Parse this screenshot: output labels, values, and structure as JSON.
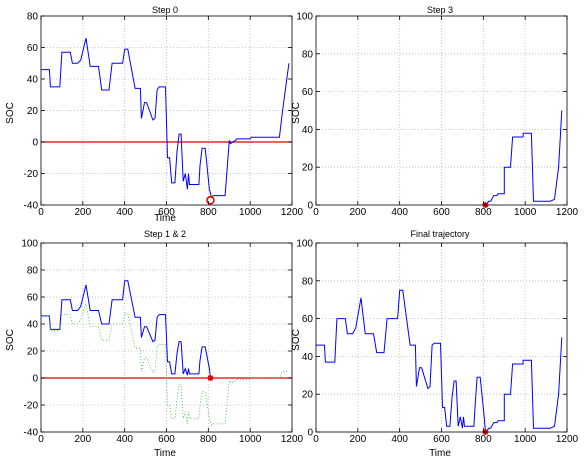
{
  "colors": {
    "trajectory": "#0000ff",
    "reference": "#e00000",
    "marker": "#e00000",
    "prior_trajectory": "#33bb33",
    "grid": "#bbbbbb"
  },
  "chart_data": [
    {
      "type": "line",
      "title": "Step 0",
      "xlabel": "Time",
      "ylabel": "SOC",
      "xlim": [
        0,
        1200
      ],
      "ylim": [
        -40,
        80
      ],
      "xticks": [
        0,
        200,
        400,
        600,
        800,
        1000,
        1200
      ],
      "yticks": [
        -40,
        -20,
        0,
        20,
        40,
        60,
        80
      ],
      "grid": true,
      "ref_line": 0,
      "marker": {
        "x": 810,
        "y": -37,
        "style": "circle"
      },
      "series": [
        {
          "role": "trajectory",
          "x": [
            0,
            40,
            45,
            90,
            100,
            140,
            150,
            175,
            190,
            215,
            235,
            275,
            290,
            325,
            340,
            390,
            400,
            415,
            450,
            470,
            475,
            480,
            495,
            505,
            535,
            545,
            555,
            565,
            595,
            605,
            615,
            625,
            640,
            650,
            660,
            670,
            680,
            690,
            700,
            705,
            710,
            755,
            760,
            770,
            775,
            785,
            805,
            815,
            825,
            875,
            880,
            900,
            905,
            930,
            935,
            1000,
            1005,
            1140,
            1155,
            1185
          ],
          "y": [
            46,
            46,
            35,
            35,
            57,
            57,
            50,
            50,
            52,
            66,
            48,
            48,
            33,
            33,
            50,
            50,
            59,
            59,
            34,
            34,
            34,
            15,
            25,
            25,
            14,
            15,
            33,
            35,
            35,
            -10,
            -10,
            -26,
            -26,
            -6,
            5,
            5,
            -25,
            -20,
            -30,
            -20,
            -27,
            -27,
            -15,
            -4,
            -4,
            -4,
            -30,
            -35,
            -34,
            -34,
            -34,
            1,
            -1,
            1,
            2,
            2,
            3,
            3,
            20,
            50
          ]
        }
      ]
    },
    {
      "type": "line",
      "title": "Step 3",
      "xlabel": "",
      "ylabel": "SOC",
      "xlim": [
        0,
        1200
      ],
      "ylim": [
        0,
        100
      ],
      "xticks": [
        0,
        200,
        400,
        600,
        800,
        1000,
        1200
      ],
      "yticks": [
        0,
        20,
        40,
        60,
        80,
        100
      ],
      "grid": true,
      "marker": {
        "x": 810,
        "y": 0,
        "style": "star"
      },
      "series": [
        {
          "role": "trajectory",
          "x": [
            815,
            820,
            825,
            835,
            840,
            850,
            865,
            870,
            900,
            900,
            930,
            940,
            990,
            990,
            1030,
            1040,
            1060,
            1075,
            1120,
            1140,
            1160,
            1175
          ],
          "y": [
            0,
            1,
            2,
            2,
            3,
            5,
            5,
            6,
            6,
            20,
            20,
            36,
            36,
            38,
            38,
            2,
            2,
            2,
            2,
            3,
            20,
            50
          ]
        }
      ]
    },
    {
      "type": "line",
      "title": "Step 1 & 2",
      "xlabel": "Time",
      "ylabel": "SOC",
      "xlim": [
        0,
        1200
      ],
      "ylim": [
        -40,
        100
      ],
      "xticks": [
        0,
        200,
        400,
        600,
        800,
        1000,
        1200
      ],
      "yticks": [
        -40,
        -20,
        0,
        20,
        40,
        60,
        80,
        100
      ],
      "grid": true,
      "ref_line": 0,
      "marker": {
        "x": 810,
        "y": 0,
        "style": "star"
      },
      "series": [
        {
          "role": "trajectory",
          "x": [
            0,
            40,
            45,
            90,
            100,
            140,
            150,
            175,
            190,
            215,
            235,
            275,
            290,
            325,
            340,
            390,
            400,
            415,
            450,
            470,
            475,
            480,
            495,
            505,
            535,
            545,
            555,
            565,
            595,
            605,
            615,
            625,
            640,
            650,
            660,
            670,
            680,
            690,
            700,
            705,
            710,
            755,
            760,
            770,
            775,
            785,
            805,
            810
          ],
          "y": [
            46,
            46,
            36,
            36,
            58,
            58,
            50,
            50,
            53,
            69,
            50,
            50,
            40,
            40,
            58,
            58,
            72,
            72,
            45,
            45,
            45,
            30,
            38,
            38,
            27,
            28,
            45,
            47,
            47,
            12,
            12,
            3,
            3,
            18,
            27,
            27,
            3,
            7,
            2,
            7,
            3,
            3,
            13,
            23,
            23,
            23,
            7,
            0
          ]
        },
        {
          "role": "prior",
          "x": [
            0,
            40,
            45,
            90,
            100,
            140,
            150,
            175,
            190,
            215,
            235,
            275,
            290,
            325,
            340,
            390,
            400,
            415,
            450,
            470,
            475,
            480,
            495,
            505,
            535,
            545,
            555,
            565,
            595,
            605,
            615,
            625,
            640,
            650,
            660,
            670,
            680,
            690,
            700,
            705,
            710,
            755,
            760,
            770,
            775,
            785,
            805,
            815,
            825,
            875,
            880,
            900,
            905,
            930,
            935,
            1000,
            1005,
            1140,
            1155,
            1180
          ],
          "y": [
            46,
            46,
            35,
            35,
            47,
            47,
            40,
            40,
            43,
            55,
            38,
            38,
            28,
            28,
            40,
            40,
            48,
            48,
            22,
            22,
            22,
            5,
            15,
            15,
            4,
            5,
            23,
            25,
            25,
            -20,
            -20,
            -30,
            -30,
            -16,
            -5,
            -5,
            -30,
            -25,
            -34,
            -25,
            -30,
            -30,
            -20,
            -10,
            -10,
            -10,
            -30,
            -35,
            -34,
            -34,
            -34,
            -2,
            -4,
            -2,
            -1,
            -1,
            0,
            0,
            5,
            5
          ]
        }
      ]
    },
    {
      "type": "line",
      "title": "Final trajectory",
      "xlabel": "Time",
      "ylabel": "SOC",
      "xlim": [
        0,
        1200
      ],
      "ylim": [
        0,
        100
      ],
      "xticks": [
        0,
        200,
        400,
        600,
        800,
        1000,
        1200
      ],
      "yticks": [
        0,
        20,
        40,
        60,
        80,
        100
      ],
      "grid": true,
      "marker": {
        "x": 810,
        "y": 0,
        "style": "star"
      },
      "series": [
        {
          "role": "trajectory",
          "x": [
            0,
            40,
            45,
            90,
            100,
            140,
            150,
            175,
            190,
            215,
            235,
            275,
            290,
            325,
            340,
            390,
            400,
            415,
            450,
            470,
            475,
            480,
            495,
            505,
            535,
            545,
            555,
            565,
            595,
            605,
            615,
            625,
            640,
            650,
            660,
            670,
            680,
            690,
            700,
            705,
            710,
            755,
            760,
            770,
            775,
            785,
            805,
            810,
            815,
            820,
            825,
            835,
            840,
            850,
            865,
            870,
            900,
            900,
            930,
            940,
            990,
            990,
            1030,
            1040,
            1060,
            1075,
            1120,
            1140,
            1160,
            1175
          ],
          "y": [
            46,
            46,
            37,
            37,
            60,
            60,
            52,
            52,
            55,
            71,
            52,
            52,
            42,
            42,
            60,
            60,
            75,
            75,
            46,
            46,
            46,
            24,
            34,
            34,
            23,
            24,
            46,
            47,
            47,
            13,
            13,
            3,
            3,
            18,
            27,
            27,
            3,
            8,
            2,
            8,
            3,
            3,
            13,
            29,
            29,
            29,
            7,
            0,
            0,
            1,
            2,
            2,
            3,
            5,
            5,
            6,
            6,
            20,
            20,
            36,
            36,
            38,
            38,
            2,
            2,
            2,
            2,
            3,
            20,
            50
          ]
        }
      ]
    }
  ]
}
